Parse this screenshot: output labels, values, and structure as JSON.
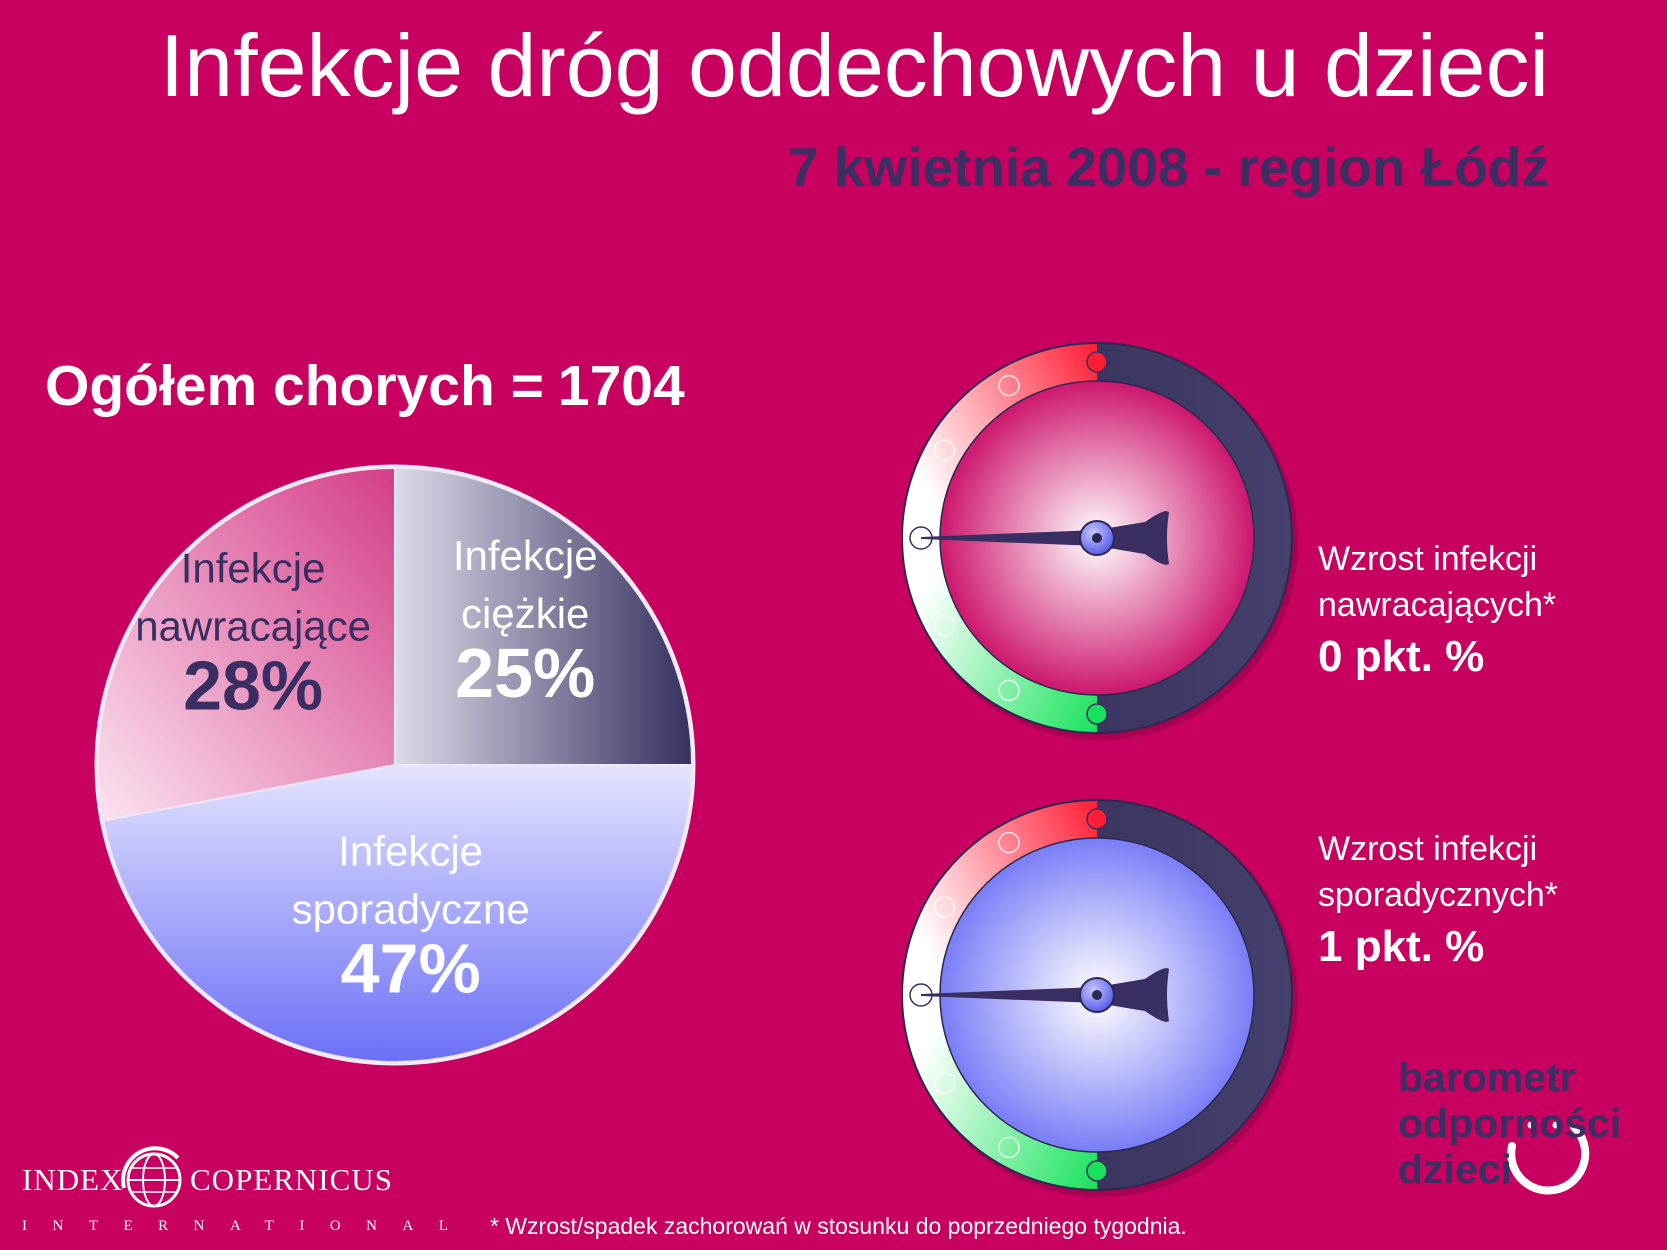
{
  "header": {
    "title": "Infekcje dróg oddechowych u dzieci",
    "subtitle": "7 kwietnia 2008 - region Łódź"
  },
  "total": {
    "label": "Ogółem chorych =",
    "value": "1704"
  },
  "chart_data": {
    "type": "pie",
    "slices": [
      {
        "label_line1": "Infekcje",
        "label_line2": "ciężkie",
        "value": 25,
        "value_label": "25%",
        "color": "#3f3a68"
      },
      {
        "label_line1": "Infekcje",
        "label_line2": "sporadyczne",
        "value": 47,
        "value_label": "47%",
        "color": "#7d82f7"
      },
      {
        "label_line1": "Infekcje",
        "label_line2": "nawracające",
        "value": 28,
        "value_label": "28%",
        "color": "#de5597"
      }
    ]
  },
  "gauges": [
    {
      "label_line1": "Wzrost infekcji",
      "label_line2": "nawracających*",
      "value_label": "0 pkt. %",
      "value": 0,
      "face_color": "#c8005f"
    },
    {
      "label_line1": "Wzrost infekcji",
      "label_line2": "sporadycznych*",
      "value_label": "1 pkt. %",
      "value": 1,
      "face_color": "#6c70f5"
    }
  ],
  "footnote": "* Wzrost/spadek zachorowań w stosunku do poprzedniego tygodnia.",
  "brand": {
    "line1": "barometr",
    "line2": "odporności",
    "line3": "dzieci"
  },
  "logo": {
    "left": "INDEX",
    "right": "COPERNICUS",
    "sub": "INTERNATIONAL"
  },
  "colors": {
    "background": "#c8005f",
    "navy": "#3a2e62",
    "gauge_red": "#ff1d35",
    "gauge_green": "#18e25b"
  }
}
